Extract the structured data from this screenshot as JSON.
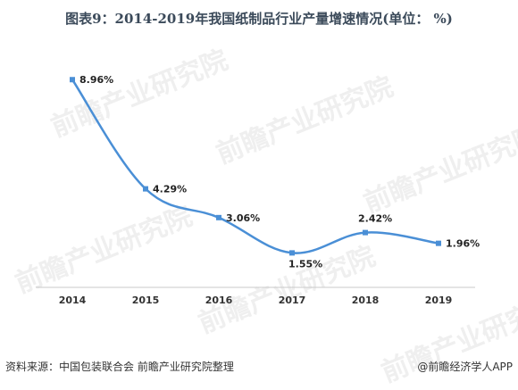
{
  "title": "图表9：2014-2019年我国纸制品行业产量增速情况(单位： %)",
  "watermark": "前瞻产业研究院",
  "source_text": "资料来源：中国包装联合会 前瞻产业研究院整理",
  "credit_text": "@前瞻经济学人APP",
  "colors": {
    "line": "#4a8fd6",
    "marker": "#4a8fd6",
    "axis": "#c8c8c8",
    "label": "#222222"
  },
  "chart_data": {
    "type": "line",
    "title": "图表9：2014-2019年我国纸制品行业产量增速情况(单位： %)",
    "categories": [
      "2014",
      "2015",
      "2016",
      "2017",
      "2018",
      "2019"
    ],
    "series": [
      {
        "values": [
          8.96,
          4.29,
          3.06,
          1.55,
          2.42,
          1.96
        ],
        "labels": [
          "8.96%",
          "4.29%",
          "3.06%",
          "1.55%",
          "2.42%",
          "1.96%"
        ]
      }
    ],
    "ylim": [
      0,
      10
    ],
    "xlabel": "",
    "ylabel": "",
    "grid": false,
    "legend": "none",
    "smooth": true
  }
}
